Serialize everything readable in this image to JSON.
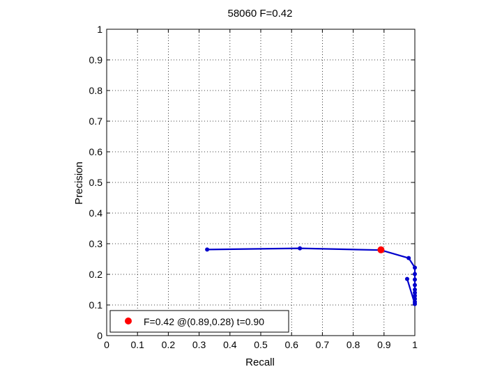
{
  "chart_data": {
    "type": "line",
    "title": "58060 F=0.42",
    "xlabel": "Recall",
    "ylabel": "Precision",
    "xlim": [
      0,
      1
    ],
    "ylim": [
      0,
      1
    ],
    "xticks": [
      "0",
      "0.1",
      "0.2",
      "0.3",
      "0.4",
      "0.5",
      "0.6",
      "0.7",
      "0.8",
      "0.9",
      "1"
    ],
    "yticks": [
      "0",
      "0.1",
      "0.2",
      "0.3",
      "0.4",
      "0.5",
      "0.6",
      "0.7",
      "0.8",
      "0.9",
      "1"
    ],
    "grid": true,
    "legend_position": "bottom-left",
    "series": [
      {
        "color": "#0000cc",
        "x": [
          0.326,
          0.627,
          0.89,
          0.98,
          1.0,
          1.0,
          1.0,
          1.0,
          1.0,
          1.0,
          1.0,
          1.0,
          1.0,
          1.0,
          0.975
        ],
        "y": [
          0.281,
          0.285,
          0.279,
          0.253,
          0.222,
          0.201,
          0.183,
          0.165,
          0.15,
          0.14,
          0.13,
          0.12,
          0.11,
          0.103,
          0.185
        ]
      }
    ],
    "best_point": {
      "x": 0.89,
      "y": 0.28,
      "color": "#ff0000",
      "label": "F=0.42 @(0.89,0.28) t=0.90"
    }
  }
}
